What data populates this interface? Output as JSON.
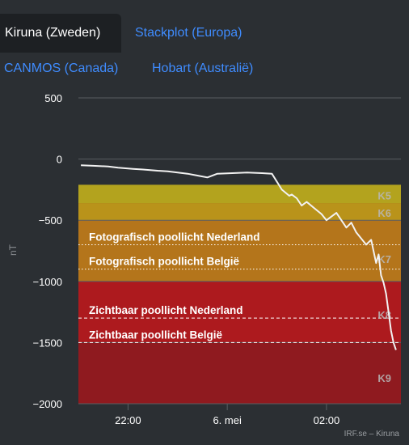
{
  "tabs": [
    {
      "label": "Kiruna (Zweden)",
      "active": true
    },
    {
      "label": "Stackplot (Europa)",
      "active": false
    },
    {
      "label": "CANMOS (Canada)",
      "active": false
    },
    {
      "label": "Hobart (Australië)",
      "active": false
    }
  ],
  "chart_data": {
    "type": "line",
    "ylabel": "nT",
    "ylim": [
      -2000,
      500
    ],
    "yticks": [
      500,
      0,
      -500,
      -1000,
      -1500,
      -2000
    ],
    "ytick_labels": [
      "500",
      "0",
      "−500",
      "−1000",
      "−1500",
      "−2000"
    ],
    "xticks": [
      {
        "label": "22:00",
        "hour": 22
      },
      {
        "label": "6. mei",
        "hour": 24
      },
      {
        "label": "02:00",
        "hour": 26
      }
    ],
    "xlim_hours": [
      21.0,
      27.5
    ],
    "bands": [
      {
        "label": "K5",
        "from": -210,
        "to": -360,
        "color": "#b3a31e"
      },
      {
        "label": "K6",
        "from": -360,
        "to": -500,
        "color": "#b9931a"
      },
      {
        "label": "K7",
        "from": -500,
        "to": -1000,
        "color": "#b4751b"
      },
      {
        "label": "K8",
        "from": -1000,
        "to": -1500,
        "color": "#ad1a1e"
      },
      {
        "label": "K9",
        "from": -1500,
        "to": -2000,
        "color": "#8f1a1f"
      }
    ],
    "thresholds": [
      {
        "label": "Fotografisch poollicht Nederland",
        "value": -700,
        "style": "dotted"
      },
      {
        "label": "Fotografisch poollicht België",
        "value": -900,
        "style": "dotted"
      },
      {
        "label": "Zichtbaar poollicht Nederland",
        "value": -1300,
        "style": "dashed"
      },
      {
        "label": "Zichtbaar poollicht België",
        "value": -1500,
        "style": "dashed"
      }
    ],
    "series": [
      {
        "x_hours": [
          21.05,
          21.3,
          21.6,
          21.8,
          22.1,
          22.3,
          22.6,
          22.8,
          23.0,
          23.2,
          23.4,
          23.6,
          23.8,
          24.1,
          24.4,
          24.7,
          24.9,
          25.1,
          25.25,
          25.3,
          25.4,
          25.5,
          25.6,
          25.75,
          25.9,
          26.0,
          26.2,
          26.4,
          26.5,
          26.6,
          26.8,
          26.9,
          27.0,
          27.05,
          27.1,
          27.15,
          27.2,
          27.25,
          27.3,
          27.35,
          27.4
        ],
        "values": [
          -50,
          -55,
          -60,
          -70,
          -80,
          -85,
          -95,
          -100,
          -110,
          -120,
          -135,
          -150,
          -120,
          -115,
          -110,
          -115,
          -120,
          -250,
          -300,
          -290,
          -320,
          -380,
          -350,
          -400,
          -450,
          -500,
          -440,
          -560,
          -520,
          -600,
          -700,
          -660,
          -850,
          -780,
          -950,
          -1010,
          -1100,
          -1250,
          -1400,
          -1500,
          -1560
        ]
      }
    ],
    "credit": "IRF.se – Kiruna",
    "colors": {
      "line": "#f2f2f2",
      "grid": "#5a5e62",
      "axis_text": "#ffffff"
    }
  }
}
